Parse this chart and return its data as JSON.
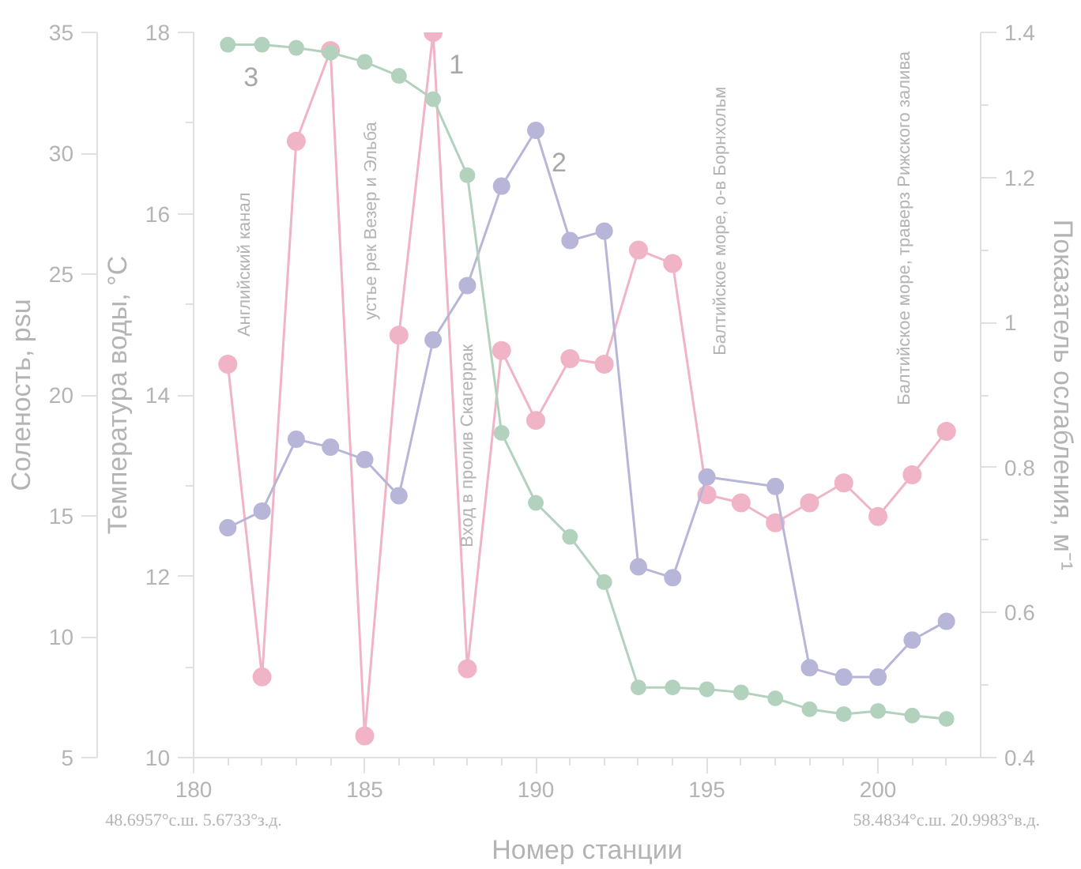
{
  "chart_data": {
    "type": "line",
    "xlabel": "Номер станции",
    "ylabel": "Температура воды, °С",
    "y2label": "Соленость, psu",
    "y3label": "Показатель ослабления, м⁻¹",
    "x": [
      181,
      182,
      183,
      184,
      185,
      186,
      187,
      188,
      189,
      190,
      191,
      192,
      193,
      194,
      195,
      196,
      197,
      198,
      199,
      200,
      201,
      202
    ],
    "xlim": [
      180,
      203
    ],
    "xticks": [
      180,
      {
        "value": 181,
        "label": null
      },
      {
        "value": 182,
        "label": null
      },
      {
        "value": 183,
        "label": null
      },
      {
        "value": 184,
        "label": null
      },
      185,
      {
        "value": 186,
        "label": null
      },
      {
        "value": 187,
        "label": null
      },
      {
        "value": 188,
        "label": null
      },
      {
        "value": 189,
        "label": null
      },
      190,
      {
        "value": 191,
        "label": null
      },
      {
        "value": 192,
        "label": null
      },
      {
        "value": 193,
        "label": null
      },
      {
        "value": 194,
        "label": null
      },
      195,
      {
        "value": 196,
        "label": null
      },
      {
        "value": 197,
        "label": null
      },
      {
        "value": 198,
        "label": null
      },
      {
        "value": 199,
        "label": null
      },
      200,
      {
        "value": 201,
        "label": null
      },
      {
        "value": 202,
        "label": null
      }
    ],
    "ylim": [
      10,
      18
    ],
    "yticks": [
      10,
      {
        "value": 11,
        "label": null
      },
      12,
      {
        "value": 13,
        "label": null
      },
      14,
      {
        "value": 15,
        "label": null
      },
      16,
      {
        "value": 17,
        "label": null
      },
      18
    ],
    "y2lim": [
      5,
      35
    ],
    "y2ticks": [
      5,
      10,
      15,
      20,
      25,
      30,
      35
    ],
    "y3lim": [
      0.4,
      1.4
    ],
    "y3ticks": [
      {
        "value": 0.4,
        "label": "0.4"
      },
      {
        "value": 0.5,
        "label": null
      },
      {
        "value": 0.6,
        "label": "0.6"
      },
      {
        "value": 0.7,
        "label": null
      },
      {
        "value": 0.8,
        "label": "0.8"
      },
      {
        "value": 0.9,
        "label": null
      },
      {
        "value": 1,
        "label": "1"
      },
      {
        "value": 1.1,
        "label": null
      },
      {
        "value": 1.2,
        "label": "1.2"
      },
      {
        "value": 1.3,
        "label": null
      },
      {
        "value": 1.4,
        "label": "1.4"
      }
    ],
    "marker": "circle",
    "line_style": "solid",
    "grid": false,
    "series": [
      {
        "name": "1",
        "color": "#f0b4c6",
        "axis": "y",
        "values": [
          14.34,
          10.89,
          16.8,
          17.8,
          10.24,
          14.66,
          18.0,
          10.98,
          14.49,
          13.72,
          14.4,
          14.34,
          15.6,
          15.45,
          12.9,
          12.81,
          12.59,
          12.81,
          13.03,
          12.66,
          13.12,
          13.6
        ]
      },
      {
        "name": "2",
        "color": "#b8b6d8",
        "axis": "y3",
        "x": [
          181,
          182,
          183,
          184,
          185,
          186,
          187,
          188,
          189,
          190,
          191,
          192,
          193,
          194,
          195,
          197,
          198,
          199,
          200,
          201,
          202
        ],
        "values": [
          0.717,
          0.74,
          0.839,
          0.828,
          0.811,
          0.761,
          0.976,
          1.051,
          1.188,
          1.265,
          1.113,
          1.126,
          0.663,
          0.648,
          0.787,
          0.774,
          0.524,
          0.511,
          0.511,
          0.562,
          0.588
        ]
      },
      {
        "name": "3",
        "color": "#b2d2be",
        "axis": "y2",
        "values": [
          34.49,
          34.49,
          34.36,
          34.16,
          33.78,
          33.2,
          32.24,
          29.09,
          18.43,
          15.54,
          14.13,
          12.26,
          7.9,
          7.9,
          7.83,
          7.7,
          7.45,
          7.0,
          6.8,
          6.93,
          6.74,
          6.6
        ]
      }
    ],
    "annotations": [
      "Английский канал",
      "устье рек Везер и Эльба",
      "Вход в пролив Скагеррак",
      "Балтийское море, о-в Борнхольм",
      "Балтийское море, траверз Рижского залива",
      "48.6957°с.ш. 5.6733°з.д.",
      "58.4834°с.ш. 20.9983°в.д."
    ]
  }
}
